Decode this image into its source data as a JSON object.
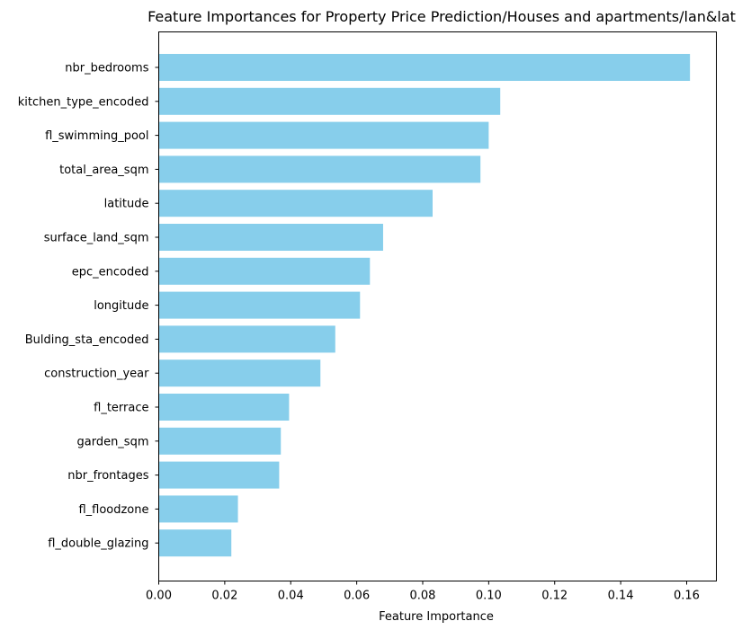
{
  "chart_data": {
    "type": "bar",
    "orientation": "horizontal",
    "title": "Feature Importances for Property Price Prediction/Houses and apartments/lan&lat",
    "xlabel": "Feature Importance",
    "ylabel": "",
    "categories": [
      "nbr_bedrooms",
      "kitchen_type_encoded",
      "fl_swimming_pool",
      "total_area_sqm",
      "latitude",
      "surface_land_sqm",
      "epc_encoded",
      "longitude",
      "Bulding_sta_encoded",
      "construction_year",
      "fl_terrace",
      "garden_sqm",
      "nbr_frontages",
      "fl_floodzone",
      "fl_double_glazing"
    ],
    "values": [
      0.161,
      0.1035,
      0.1,
      0.0975,
      0.083,
      0.068,
      0.064,
      0.061,
      0.0535,
      0.049,
      0.0395,
      0.037,
      0.0365,
      0.024,
      0.022
    ],
    "xlim": [
      0,
      0.169
    ],
    "xticks": [
      "0.00",
      "0.02",
      "0.04",
      "0.06",
      "0.08",
      "0.10",
      "0.12",
      "0.14",
      "0.16"
    ],
    "bar_color": "#87ceeb",
    "grid": false
  }
}
